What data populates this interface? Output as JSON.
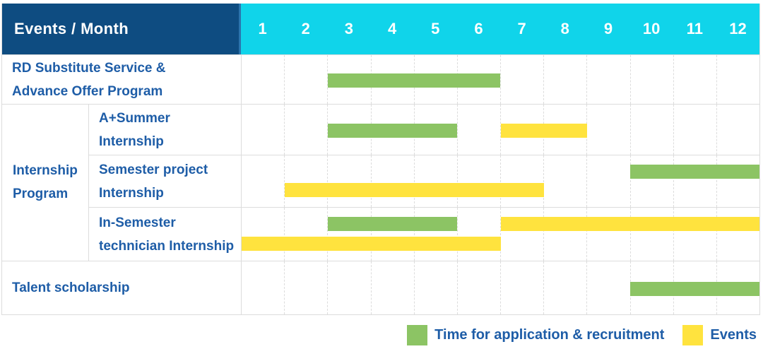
{
  "colors": {
    "header_bg": "#0e4c81",
    "header_divider": "#2b74ad",
    "months_bg": "#10d4ea",
    "header_text": "#ffffff",
    "label_text": "#1e5da7",
    "grid_line": "#dcdcdc",
    "green": "#8cc464",
    "yellow": "#ffe33e"
  },
  "header": {
    "title": "Events / Month",
    "months": [
      "1",
      "2",
      "3",
      "4",
      "5",
      "6",
      "7",
      "8",
      "9",
      "10",
      "11",
      "12"
    ]
  },
  "chart_data": {
    "type": "gantt",
    "title": "Events / Month",
    "x_axis": {
      "unit": "month",
      "ticks": [
        1,
        2,
        3,
        4,
        5,
        6,
        7,
        8,
        9,
        10,
        11,
        12
      ],
      "range": [
        1,
        12
      ]
    },
    "grid": "dashed-vertical",
    "legend_position": "bottom-right",
    "series_legend": [
      {
        "name": "Time for application & recruitment",
        "color": "#8cc464"
      },
      {
        "name": "Events",
        "color": "#ffe33e"
      }
    ],
    "groups": [
      {
        "label": "Internship Program",
        "label_lines": [
          "Internship",
          "Program"
        ],
        "row_indexes": [
          1,
          2,
          3
        ]
      }
    ],
    "rows": [
      {
        "id": "rd-substitute",
        "group": null,
        "label": "RD Substitute Service & Advance Offer Program",
        "label_lines": [
          "RD Substitute Service &",
          "Advance Offer Program"
        ],
        "bars": [
          {
            "series": "Time for application & recruitment",
            "color": "green",
            "start_month": 3,
            "end_month": 6,
            "lane": "single"
          }
        ]
      },
      {
        "id": "a-plus-summer",
        "group": "Internship Program",
        "label": "A+Summer Internship",
        "label_lines": [
          "A+Summer",
          "Internship"
        ],
        "bars": [
          {
            "series": "Time for application & recruitment",
            "color": "green",
            "start_month": 3,
            "end_month": 5,
            "lane": "single"
          },
          {
            "series": "Events",
            "color": "yellow",
            "start_month": 7,
            "end_month": 8,
            "lane": "single"
          }
        ]
      },
      {
        "id": "semester-project",
        "group": "Internship Program",
        "label": "Semester project Internship",
        "label_lines": [
          "Semester project",
          "Internship"
        ],
        "bars": [
          {
            "series": "Time for application & recruitment",
            "color": "green",
            "start_month": 10,
            "end_month": 12,
            "lane": "top"
          },
          {
            "series": "Events",
            "color": "yellow",
            "start_month": 2,
            "end_month": 7,
            "lane": "bottom"
          }
        ]
      },
      {
        "id": "in-semester-technician",
        "group": "Internship Program",
        "label": "In-Semester technician Internship",
        "label_lines": [
          "In-Semester",
          "technician Internship"
        ],
        "bars": [
          {
            "series": "Time for application & recruitment",
            "color": "green",
            "start_month": 3,
            "end_month": 5,
            "lane": "top"
          },
          {
            "series": "Events",
            "color": "yellow",
            "start_month": 7,
            "end_month": 12,
            "lane": "top"
          },
          {
            "series": "Events",
            "color": "yellow",
            "start_month": 1,
            "end_month": 6,
            "lane": "bottom"
          }
        ]
      },
      {
        "id": "talent-scholarship",
        "group": null,
        "label": "Talent scholarship",
        "label_lines": [
          "Talent scholarship"
        ],
        "bars": [
          {
            "series": "Time for application & recruitment",
            "color": "green",
            "start_month": 10,
            "end_month": 12,
            "lane": "single"
          }
        ]
      }
    ]
  },
  "legend": {
    "items": [
      {
        "label": "Time for application & recruitment",
        "color_key": "green"
      },
      {
        "label": "Events",
        "color_key": "yellow"
      }
    ]
  }
}
